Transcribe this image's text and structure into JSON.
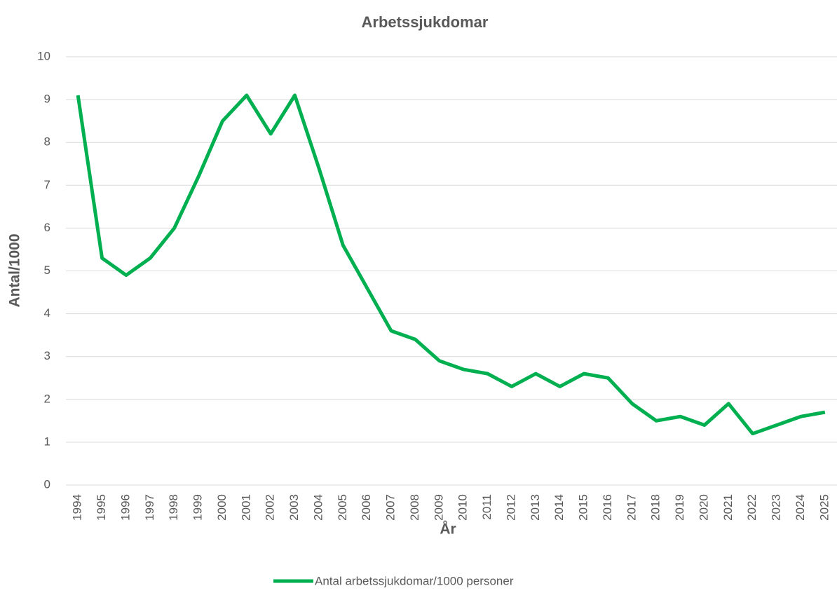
{
  "chart_data": {
    "type": "line",
    "title": "Arbetssjukdomar",
    "x_label": "År",
    "y_label": "Antal/1000",
    "categories": [
      "1994",
      "1995",
      "1996",
      "1997",
      "1998",
      "1999",
      "2000",
      "2001",
      "2002",
      "2003",
      "2004",
      "2005",
      "2006",
      "2007",
      "2008",
      "2009",
      "2010",
      "2011",
      "2012",
      "2013",
      "2014",
      "2015",
      "2016",
      "2017",
      "2018",
      "2019",
      "2020",
      "2021",
      "2022",
      "2023",
      "2024",
      "2025"
    ],
    "series": [
      {
        "name": "Antal arbetssjukdomar/1000 personer",
        "color": "#00b050",
        "values": [
          9.1,
          5.3,
          4.9,
          5.3,
          6.0,
          7.2,
          8.5,
          9.1,
          8.2,
          9.1,
          7.4,
          5.6,
          4.6,
          3.6,
          3.4,
          2.9,
          2.7,
          2.6,
          2.3,
          2.6,
          2.3,
          2.6,
          2.5,
          1.9,
          1.5,
          1.6,
          1.4,
          1.9,
          1.2,
          1.4,
          1.6,
          1.7
        ]
      }
    ],
    "ylim": [
      0,
      10
    ],
    "yticks": [
      0,
      1,
      2,
      3,
      4,
      5,
      6,
      7,
      8,
      9,
      10
    ],
    "grid": true,
    "legend": "bottom"
  }
}
